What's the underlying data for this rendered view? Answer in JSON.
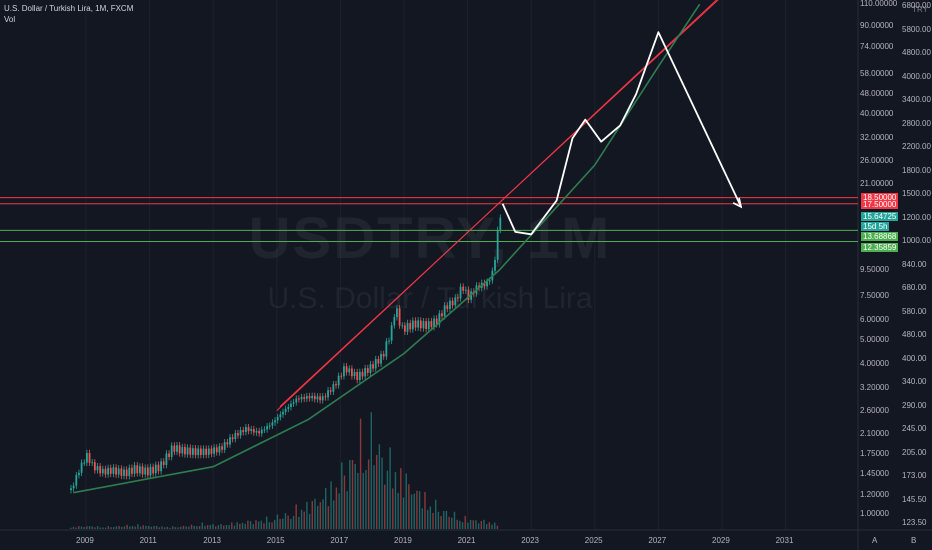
{
  "header": {
    "title": "U.S. Dollar / Turkish Lira, 1M, FXCM",
    "vol": "Vol"
  },
  "watermark": {
    "symbol": "USDTRY, 1M",
    "name": "U.S. Dollar / Turkish Lira"
  },
  "currency": "TRY",
  "axis_bottom_letters": [
    "A",
    "B"
  ],
  "colors": {
    "background": "#131722",
    "up": "#26a69a",
    "down": "#ef5350",
    "resistance": "#f23645",
    "support": "#4caf50",
    "curve": "#2e7d4f",
    "projection": "#ffffff"
  },
  "price_labels": [
    {
      "text": "18.50000",
      "color": "#f23645"
    },
    {
      "text": "17.50000",
      "color": "#f23645"
    },
    {
      "text": "15.64725",
      "color": "#26a69a"
    },
    {
      "text": "15d 5h",
      "color": "#26a69a"
    },
    {
      "text": "13.68868",
      "color": "#4caf50"
    },
    {
      "text": "12.35859",
      "color": "#4caf50"
    }
  ],
  "chart_data": {
    "type": "candlestick",
    "title": "U.S. Dollar / Turkish Lira, 1M, FXCM",
    "x_ticks": [
      "2009",
      "2011",
      "2013",
      "2015",
      "2017",
      "2019",
      "2021",
      "2023",
      "2025",
      "2027",
      "2029",
      "2031"
    ],
    "y_ticks_left": [
      "110.00000",
      "90.00000",
      "74.00000",
      "58.00000",
      "48.00000",
      "40.00000",
      "32.00000",
      "26.00000",
      "21.00000",
      "9.50000",
      "7.50000",
      "6.00000",
      "5.00000",
      "4.00000",
      "3.20000",
      "2.60000",
      "2.10000",
      "1.75000",
      "1.45000",
      "1.20000",
      "1.00000"
    ],
    "y_ticks_right": [
      "6800.00",
      "5800.00",
      "4800.00",
      "4000.00",
      "3400.00",
      "2800.00",
      "2200.00",
      "1800.00",
      "1500.00",
      "1200.00",
      "1000.00",
      "840.00",
      "680.00",
      "580.00",
      "480.00",
      "400.00",
      "340.00",
      "290.00",
      "245.00",
      "205.00",
      "173.00",
      "145.50",
      "123.50"
    ],
    "price_path": [
      [
        2008.5,
        1.25
      ],
      [
        2008.8,
        1.55
      ],
      [
        2009.0,
        1.72
      ],
      [
        2009.2,
        1.55
      ],
      [
        2009.5,
        1.48
      ],
      [
        2009.8,
        1.5
      ],
      [
        2010.2,
        1.46
      ],
      [
        2010.5,
        1.52
      ],
      [
        2010.9,
        1.48
      ],
      [
        2011.3,
        1.55
      ],
      [
        2011.7,
        1.85
      ],
      [
        2012.0,
        1.8
      ],
      [
        2012.4,
        1.78
      ],
      [
        2012.8,
        1.78
      ],
      [
        2013.2,
        1.83
      ],
      [
        2013.6,
        2.05
      ],
      [
        2014.0,
        2.2
      ],
      [
        2014.4,
        2.12
      ],
      [
        2014.8,
        2.3
      ],
      [
        2015.2,
        2.6
      ],
      [
        2015.6,
        2.9
      ],
      [
        2016.0,
        2.95
      ],
      [
        2016.4,
        2.9
      ],
      [
        2016.8,
        3.3
      ],
      [
        2017.1,
        3.85
      ],
      [
        2017.5,
        3.55
      ],
      [
        2017.9,
        3.85
      ],
      [
        2018.3,
        4.3
      ],
      [
        2018.6,
        5.6
      ],
      [
        2018.7,
        6.8
      ],
      [
        2018.9,
        5.5
      ],
      [
        2019.3,
        5.8
      ],
      [
        2019.7,
        5.7
      ],
      [
        2020.0,
        5.95
      ],
      [
        2020.3,
        6.8
      ],
      [
        2020.6,
        7.2
      ],
      [
        2020.8,
        8.2
      ],
      [
        2021.0,
        7.4
      ],
      [
        2021.3,
        8.2
      ],
      [
        2021.6,
        8.4
      ],
      [
        2021.8,
        9.6
      ],
      [
        2021.92,
        13.7
      ],
      [
        2022.0,
        15.6
      ]
    ],
    "volume": {
      "note": "monthly volume bars, peak near 2018",
      "values": [
        2,
        3,
        2,
        3,
        4,
        3,
        2,
        3,
        5,
        4,
        6,
        8,
        10,
        14,
        22,
        30,
        45,
        70,
        100,
        72,
        55,
        38,
        24,
        15,
        10,
        8,
        5
      ]
    },
    "drawings": {
      "resistance_lines": [
        [
          [
            2015.0,
            2.6
          ],
          [
            2029.0,
            120
          ]
        ],
        [
          [
            2015.1,
            2.7
          ],
          [
            2029.2,
            125
          ]
        ]
      ],
      "support_curve": [
        [
          2008.6,
          1.22
        ],
        [
          2013.0,
          1.55
        ],
        [
          2016.0,
          2.4
        ],
        [
          2019.0,
          4.4
        ],
        [
          2022.0,
          9.5
        ],
        [
          2025.0,
          25
        ],
        [
          2027.0,
          62
        ],
        [
          2028.3,
          110
        ]
      ],
      "projection_path": [
        [
          2022.1,
          17.5
        ],
        [
          2022.5,
          13.5
        ],
        [
          2023.0,
          13.2
        ],
        [
          2023.8,
          18.0
        ],
        [
          2024.3,
          32.0
        ],
        [
          2024.7,
          38.0
        ],
        [
          2025.2,
          31.0
        ],
        [
          2025.8,
          36.0
        ],
        [
          2026.3,
          48.0
        ],
        [
          2027.0,
          85.0
        ],
        [
          2029.6,
          17.0
        ]
      ],
      "horizontal_levels": [
        {
          "price": 18.5,
          "color": "#f23645"
        },
        {
          "price": 17.5,
          "color": "#f23645"
        },
        {
          "price": 13.68868,
          "color": "#4caf50"
        },
        {
          "price": 12.35859,
          "color": "#4caf50"
        }
      ]
    },
    "y_scale": "log"
  }
}
